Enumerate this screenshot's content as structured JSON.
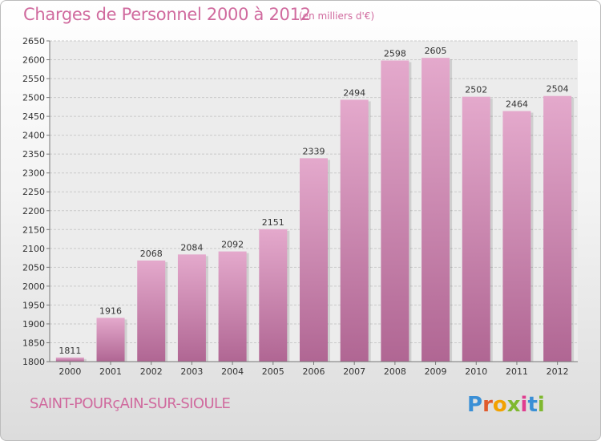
{
  "header": {
    "title": "Charges de Personnel 2000 à 2012",
    "subtitle": "(en milliers d'€)"
  },
  "footer": {
    "city": "SAINT-POURçAIN-SUR-SIOULE",
    "logo_letters": [
      "P",
      "r",
      "o",
      "x",
      "i",
      "t",
      "i"
    ]
  },
  "colors": {
    "title": "#d06a9e",
    "bar_light": "#e4a9cc",
    "bar_dark": "#b06693",
    "logo": [
      "#3a8fd6",
      "#e05a2b",
      "#f2a200",
      "#7fb82f",
      "#e03c8f",
      "#3a8fd6",
      "#7fb82f"
    ]
  },
  "chart_data": {
    "type": "bar",
    "title": "Charges de Personnel 2000 à 2012",
    "subtitle": "(en milliers d'€)",
    "categories": [
      "2000",
      "2001",
      "2002",
      "2003",
      "2004",
      "2005",
      "2006",
      "2007",
      "2008",
      "2009",
      "2010",
      "2011",
      "2012"
    ],
    "values": [
      1811,
      1916,
      2068,
      2084,
      2092,
      2151,
      2339,
      2494,
      2598,
      2605,
      2502,
      2464,
      2504
    ],
    "ylim": [
      1800,
      2650
    ],
    "yticks": [
      1800,
      1850,
      1900,
      1950,
      2000,
      2050,
      2100,
      2150,
      2200,
      2250,
      2300,
      2350,
      2400,
      2450,
      2500,
      2550,
      2600,
      2650
    ],
    "grid": true,
    "xlabel": "",
    "ylabel": ""
  }
}
